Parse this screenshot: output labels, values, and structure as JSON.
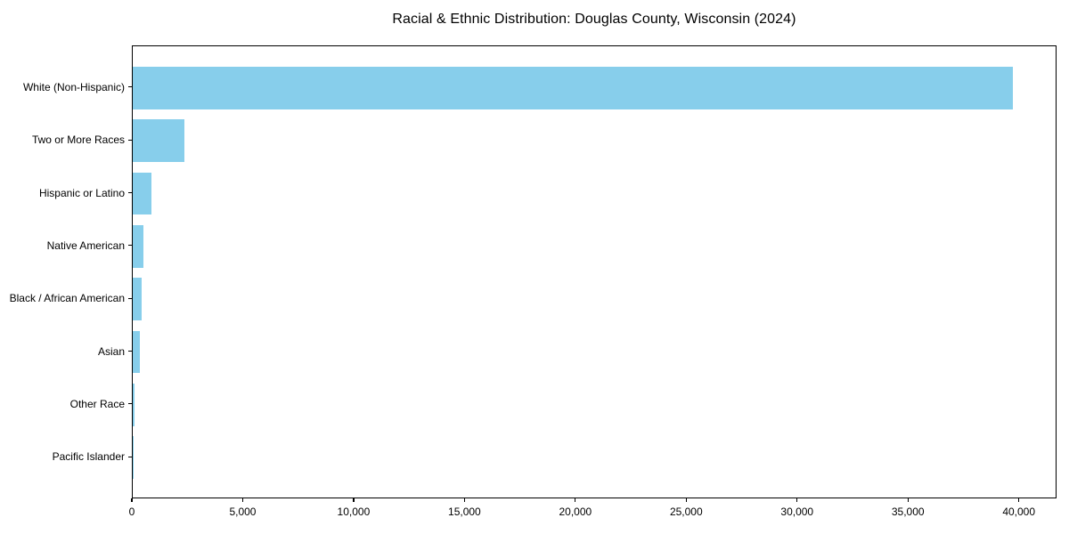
{
  "chart_data": {
    "type": "bar",
    "orientation": "horizontal",
    "title": "Racial & Ethnic Distribution: Douglas County, Wisconsin (2024)",
    "categories": [
      "White (Non-Hispanic)",
      "Two or More Races",
      "Hispanic or Latino",
      "Native American",
      "Black / African American",
      "Asian",
      "Other Race",
      "Pacific Islander"
    ],
    "values": [
      39700,
      2340,
      850,
      500,
      420,
      340,
      100,
      20
    ],
    "bar_color": "#87CEEB",
    "axis_color": "#000000",
    "xlim": [
      0,
      41700
    ],
    "x_ticks": [
      0,
      5000,
      10000,
      15000,
      20000,
      25000,
      30000,
      35000,
      40000
    ],
    "x_tick_labels": [
      "0",
      "5,000",
      "10,000",
      "15,000",
      "20,000",
      "25,000",
      "30,000",
      "35,000",
      "40,000"
    ],
    "xlabel": "",
    "ylabel": "",
    "grid": false,
    "legend": false
  }
}
